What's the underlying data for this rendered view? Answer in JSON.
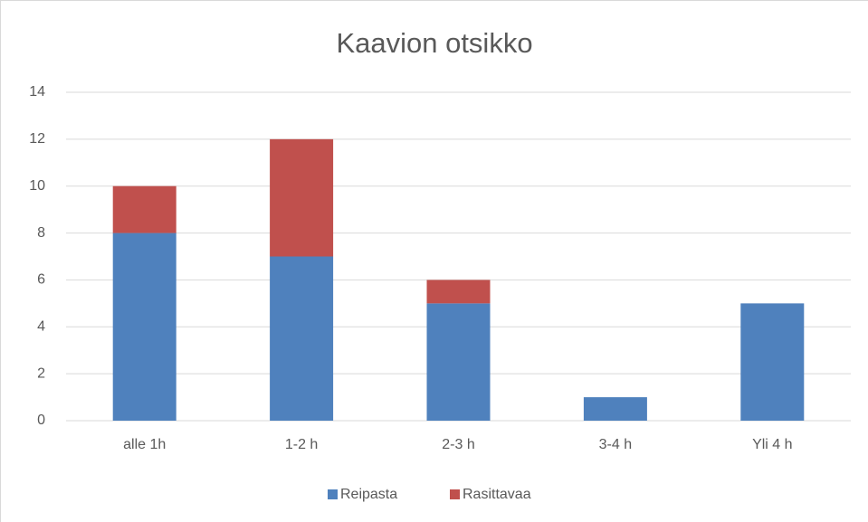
{
  "chart_data": {
    "type": "stacked_bar",
    "title": "Kaavion otsikko",
    "categories": [
      "alle 1h",
      "1-2 h",
      "2-3 h",
      "3-4 h",
      "Yli 4 h"
    ],
    "series": [
      {
        "name": "Reipasta",
        "color": "#4f81bd",
        "values": [
          8,
          7,
          5,
          1,
          5
        ]
      },
      {
        "name": "Rasittavaa",
        "color": "#c0504d",
        "values": [
          2,
          5,
          1,
          0,
          0
        ]
      }
    ],
    "ylim": [
      0,
      14
    ],
    "yticks": [
      0,
      2,
      4,
      6,
      8,
      10,
      12,
      14
    ],
    "grid": true,
    "legend": "bottom"
  }
}
